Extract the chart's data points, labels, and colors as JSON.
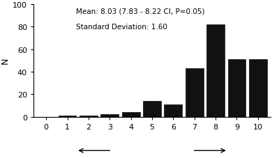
{
  "categories": [
    0,
    1,
    2,
    3,
    4,
    5,
    6,
    7,
    8,
    9,
    10
  ],
  "values": [
    0,
    1,
    1,
    2,
    4,
    14,
    11,
    43,
    82,
    51,
    51
  ],
  "bar_color": "#111111",
  "bar_edgecolor": "#111111",
  "ylabel": "N",
  "ylim": [
    0,
    100
  ],
  "yticks": [
    0,
    20,
    40,
    60,
    80,
    100
  ],
  "xlim": [
    -0.6,
    10.6
  ],
  "annotation_line1": "Mean: 8.03 (7.83 - 8.22 CI, P=0.05)",
  "annotation_line2": "Standard Deviation: 1.60",
  "bg_color": "#ffffff"
}
